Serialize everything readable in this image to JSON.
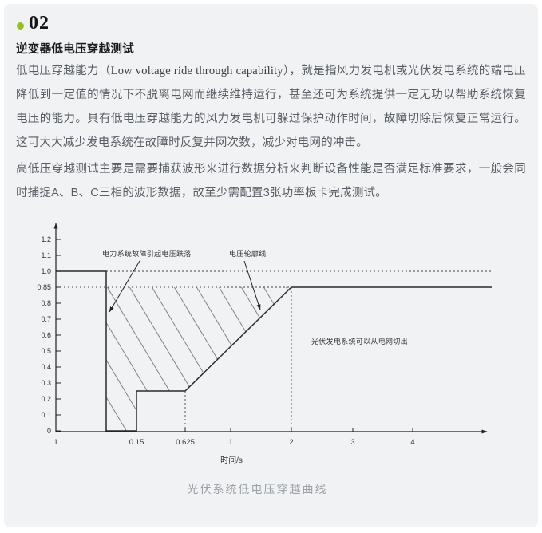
{
  "header": {
    "number": "02",
    "title": "逆变器低电压穿越测试",
    "bullet_color": "#94c122"
  },
  "paragraphs": {
    "p1_pre": "低电压穿越能力（",
    "p1_en": "Low voltage ride through capability",
    "p1_post": "），就是指风力发电机或光伏发电系统的端电压降低到一定值的情况下不脱离电网而继续维持运行，甚至还可为系统提供一定无功以帮助系统恢复电压的能力。具有低电压穿越能力的风力发电机可躲过保护动作时间，故障切除后恢复正常运行。这可大大减少发电系统在故障时反复并网次数，减少对电网的冲击。",
    "p2": "高低压穿越测试主要是需要捕获波形来进行数据分析来判断设备性能是否满足标准要求，一般会同时捕捉A、B、C三相的波形数据，故至少需配置3张功率板卡完成测试。"
  },
  "chart_data": {
    "type": "line",
    "caption": "光伏系统低电压穿越曲线",
    "xlabel": "时间/s",
    "ylim": [
      0,
      1.3
    ],
    "grid": false,
    "y_ticks": [
      "0",
      "0.1",
      "0.2",
      "0.3",
      "0.4",
      "0.5",
      "0.6",
      "0.7",
      "0.8",
      "0.85",
      "1.0",
      "1.1",
      "1.2"
    ],
    "x_ticks": [
      {
        "label": "1",
        "key": "origin"
      },
      {
        "label": "0.15",
        "key": "0.15"
      },
      {
        "label": "0.625",
        "key": "0.625"
      },
      {
        "label": "1",
        "key": "1"
      },
      {
        "label": "2",
        "key": "2"
      },
      {
        "label": "3",
        "key": "3"
      },
      {
        "label": "4",
        "key": "4"
      }
    ],
    "curve_points": [
      {
        "t": "origin",
        "v": 1.0
      },
      {
        "t": "fault",
        "v": 1.0
      },
      {
        "t": "fault",
        "v": 0.0
      },
      {
        "t": "0.15",
        "v": 0.0
      },
      {
        "t": "0.15",
        "v": 0.25
      },
      {
        "t": "0.625",
        "v": 0.25
      },
      {
        "t": "2",
        "v": 0.85
      },
      {
        "t": "end",
        "v": 0.85
      }
    ],
    "dotted_guides": [
      {
        "axis": "y",
        "value": 1.0,
        "from": "fault",
        "to": "end"
      },
      {
        "axis": "y",
        "value": 0.85,
        "from": "origin",
        "to": "2"
      },
      {
        "axis": "x",
        "at": "0.625",
        "upto": 0.25
      },
      {
        "axis": "x",
        "at": "2",
        "upto": 0.85
      }
    ],
    "shaded_region": [
      [
        "fault",
        0.85
      ],
      [
        "2",
        0.85
      ],
      [
        "0.625",
        0.25
      ],
      [
        "0.15",
        0.25
      ],
      [
        "0.15",
        0.0
      ],
      [
        "fault",
        0.0
      ]
    ],
    "annotations": [
      {
        "text": "电力系统故障引起电压跌落"
      },
      {
        "text": "电压轮廓线"
      },
      {
        "text": "光伏发电系统可以从电网切出"
      }
    ]
  }
}
